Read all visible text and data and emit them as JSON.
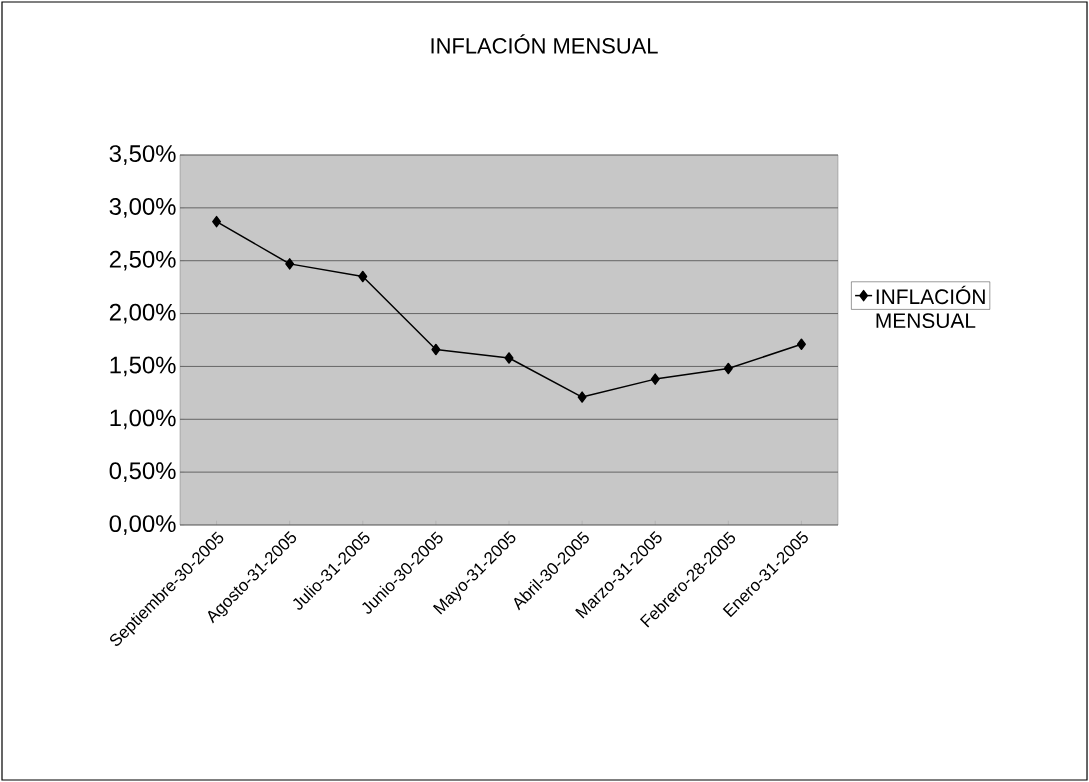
{
  "chart_data": {
    "type": "line",
    "title": "INFLACIÓN MENSUAL",
    "categories": [
      "Septiembre-30-2005",
      "Agosto-31-2005",
      "Julio-31-2005",
      "Junio-30-2005",
      "Mayo-31-2005",
      "Abril-30-2005",
      "Marzo-31-2005",
      "Febrero-28-2005",
      "Enero-31-2005"
    ],
    "series": [
      {
        "name": "INFLACIÓN MENSUAL",
        "color": "#000000",
        "values": [
          2.87,
          2.47,
          2.35,
          1.66,
          1.58,
          1.21,
          1.38,
          1.48,
          1.71
        ]
      }
    ],
    "ylim": [
      0,
      3.5
    ],
    "yticks": [
      {
        "value": 0,
        "label": "0,00%"
      },
      {
        "value": 0.5,
        "label": "0,50%"
      },
      {
        "value": 1,
        "label": "1,00%"
      },
      {
        "value": 1.5,
        "label": "1,50%"
      },
      {
        "value": 2,
        "label": "2,00%"
      },
      {
        "value": 2.5,
        "label": "2,50%"
      },
      {
        "value": 3,
        "label": "3,00%"
      },
      {
        "value": 3.5,
        "label": "3,50%"
      }
    ],
    "grid": "y",
    "legend": "right",
    "marker": "diamond",
    "line_style": "solid"
  }
}
